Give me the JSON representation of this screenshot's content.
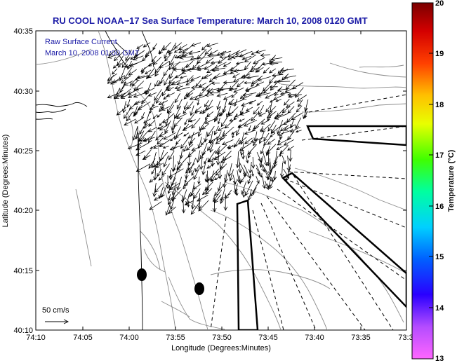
{
  "map": {
    "title": "RU COOL  NOAA−17  Sea Surface Temperature:  March 10, 2008 0120 GMT",
    "legend_line1": "Raw Surface Current",
    "legend_line2": "March 10, 2008 01:00 GMT",
    "scale_label": "50 cm/s",
    "xlabel": "Longitude (Degrees:Minutes)",
    "ylabel": "Latitude (Degrees:Minutes)",
    "x_ticks": [
      "74:10",
      "74:05",
      "74:00",
      "73:55",
      "73:50",
      "73:45",
      "73:40",
      "73:35",
      "73:3"
    ],
    "y_ticks": [
      "40:35",
      "40:30",
      "40:25",
      "40:20",
      "40:15",
      "40:10"
    ],
    "colors": {
      "title": "#1a1aa6",
      "coast": "#000000",
      "contour": "#8c8c8c",
      "vectors": "#000000"
    }
  },
  "colorbar": {
    "label": "Temperature (°C)",
    "ticks": [
      "20",
      "19",
      "18",
      "17",
      "16",
      "15",
      "14",
      "13"
    ],
    "range": [
      13,
      20
    ],
    "stops": [
      "#ff55ff",
      "#a040ff",
      "#1a00ff",
      "#0080ff",
      "#00e8ff",
      "#00ff80",
      "#80ff00",
      "#ffff00",
      "#ffb000",
      "#ff3000",
      "#cc0000",
      "#800000"
    ]
  }
}
